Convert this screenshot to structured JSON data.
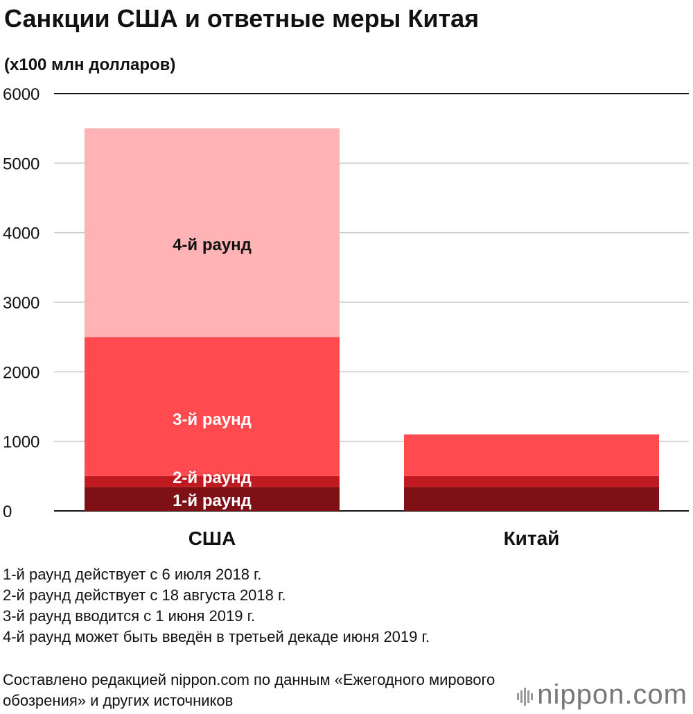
{
  "title": "Санкции США и ответные меры Китая",
  "unit_label": "(x100 млн долларов)",
  "chart_data": {
    "type": "bar",
    "stacked": true,
    "categories": [
      "США",
      "Китай"
    ],
    "ylim": [
      0,
      6000
    ],
    "yticks": [
      0,
      1000,
      2000,
      3000,
      4000,
      5000,
      6000
    ],
    "grid": true,
    "series": [
      {
        "name": "1-й раунд",
        "values": [
          340,
          340
        ],
        "color": "#7f1015",
        "label_color": "#ffffff"
      },
      {
        "name": "2-й раунд",
        "values": [
          160,
          160
        ],
        "color": "#bf1a20",
        "label_color": "#ffffff"
      },
      {
        "name": "3-й раунд",
        "values": [
          2000,
          600
        ],
        "color": "#ff4b50",
        "label_color": "#ffffff"
      },
      {
        "name": "4-й раунд",
        "values": [
          3000,
          0
        ],
        "color": "#ffb3b5",
        "label_color": "#111111"
      }
    ]
  },
  "notes": [
    "1-й раунд действует с 6 июля 2018 г.",
    "2-й раунд действует с 18 августа 2018 г.",
    "3-й раунд вводится с 1 июня 2019 г.",
    "4-й раунд может быть введён в третьей декаде июня 2019 г."
  ],
  "source": "Составлено редакцией nippon.com по данным «Ежегодного мирового обозрения» и других источников",
  "logo": {
    "text": "nippon.com",
    "icon": "nippon-bars-icon"
  }
}
